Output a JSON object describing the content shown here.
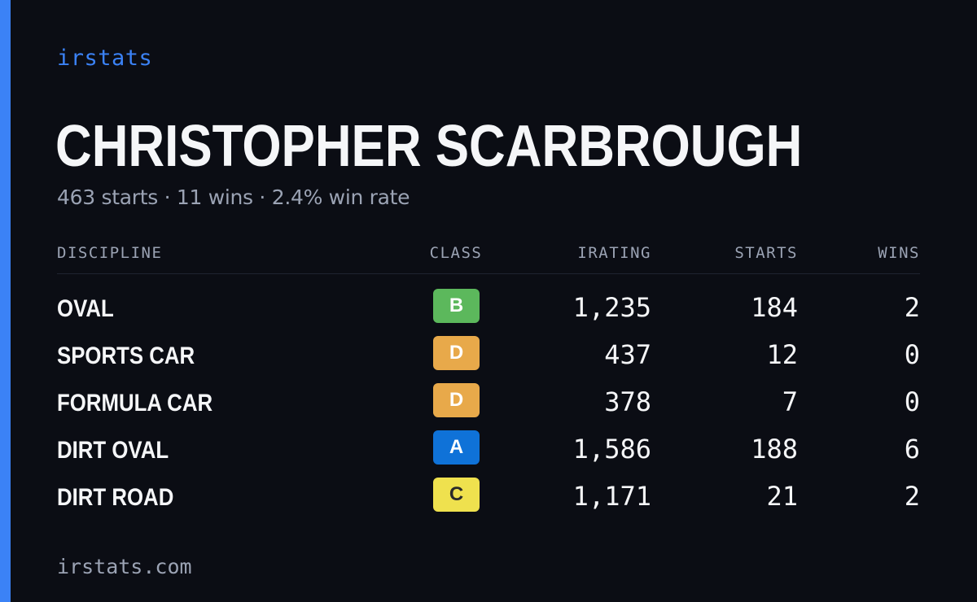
{
  "brand": "irstats",
  "driver": {
    "name": "CHRISTOPHER SCARBROUGH",
    "summary": "463 starts · 11 wins · 2.4% win rate"
  },
  "table": {
    "headers": {
      "discipline": "DISCIPLINE",
      "class": "CLASS",
      "irating": "IRATING",
      "starts": "STARTS",
      "wins": "WINS"
    },
    "rows": [
      {
        "discipline": "OVAL",
        "class": "B",
        "class_color": "#5cb85c",
        "class_text_color": "#ffffff",
        "irating": "1,235",
        "starts": "184",
        "wins": "2"
      },
      {
        "discipline": "SPORTS CAR",
        "class": "D",
        "class_color": "#e8a94a",
        "class_text_color": "#ffffff",
        "irating": "437",
        "starts": "12",
        "wins": "0"
      },
      {
        "discipline": "FORMULA CAR",
        "class": "D",
        "class_color": "#e8a94a",
        "class_text_color": "#ffffff",
        "irating": "378",
        "starts": "7",
        "wins": "0"
      },
      {
        "discipline": "DIRT OVAL",
        "class": "A",
        "class_color": "#0f72d8",
        "class_text_color": "#ffffff",
        "irating": "1,586",
        "starts": "188",
        "wins": "6"
      },
      {
        "discipline": "DIRT ROAD",
        "class": "C",
        "class_color": "#efe14e",
        "class_text_color": "#2a2a2a",
        "irating": "1,171",
        "starts": "21",
        "wins": "2"
      }
    ]
  },
  "footer": "irstats.com",
  "colors": {
    "background": "#0b0d14",
    "accent": "#3b82f6",
    "text": "#f5f6f8",
    "muted": "#9ba3b4"
  }
}
